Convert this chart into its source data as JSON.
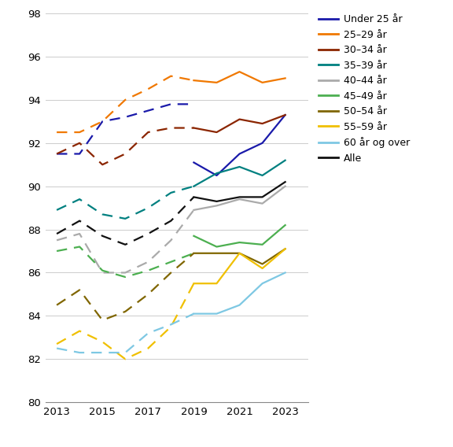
{
  "years_dashed": [
    2013,
    2014,
    2015,
    2016,
    2017,
    2018,
    2019
  ],
  "years_solid": [
    2019,
    2020,
    2021,
    2022,
    2023
  ],
  "series": [
    {
      "label": "Under 25 år",
      "color": "#1a1aaa",
      "dashed": [
        91.5,
        91.5,
        93.0,
        93.2,
        93.5,
        93.8,
        93.8
      ],
      "solid": [
        91.1,
        90.5,
        91.5,
        92.0,
        93.3
      ]
    },
    {
      "label": "25–29 år",
      "color": "#f07800",
      "dashed": [
        92.5,
        92.5,
        93.0,
        94.0,
        94.5,
        95.1,
        94.9
      ],
      "solid": [
        94.9,
        94.8,
        95.3,
        94.8,
        95.0
      ]
    },
    {
      "label": "30–34 år",
      "color": "#8b2500",
      "dashed": [
        91.5,
        92.0,
        91.0,
        91.5,
        92.5,
        92.7,
        92.7
      ],
      "solid": [
        92.7,
        92.5,
        93.1,
        92.9,
        93.3
      ]
    },
    {
      "label": "35–39 år",
      "color": "#008080",
      "dashed": [
        88.9,
        89.4,
        88.7,
        88.5,
        89.0,
        89.7,
        90.0
      ],
      "solid": [
        90.0,
        90.6,
        90.9,
        90.5,
        91.2
      ]
    },
    {
      "label": "40–44 år",
      "color": "#aaaaaa",
      "dashed": [
        87.5,
        87.8,
        86.0,
        86.0,
        86.5,
        87.5,
        88.9
      ],
      "solid": [
        88.9,
        89.1,
        89.4,
        89.2,
        90.0
      ]
    },
    {
      "label": "45–49 år",
      "color": "#4caf50",
      "dashed": [
        87.0,
        87.2,
        86.1,
        85.8,
        86.1,
        86.5,
        86.9
      ],
      "solid": [
        87.7,
        87.2,
        87.4,
        87.3,
        88.2
      ]
    },
    {
      "label": "50–54 år",
      "color": "#806600",
      "dashed": [
        84.5,
        85.2,
        83.8,
        84.2,
        85.0,
        86.0,
        86.9
      ],
      "solid": [
        86.9,
        86.9,
        86.9,
        86.4,
        87.1
      ]
    },
    {
      "label": "55–59 år",
      "color": "#f0c000",
      "dashed": [
        82.7,
        83.3,
        82.8,
        82.0,
        82.5,
        83.5,
        85.5
      ],
      "solid": [
        85.5,
        85.5,
        86.9,
        86.2,
        87.1
      ]
    },
    {
      "label": "60 år og over",
      "color": "#7ec8e3",
      "dashed": [
        82.5,
        82.3,
        82.3,
        82.3,
        83.2,
        83.6,
        84.1
      ],
      "solid": [
        84.1,
        84.1,
        84.5,
        85.5,
        86.0
      ]
    },
    {
      "label": "Alle",
      "color": "#111111",
      "dashed": [
        87.8,
        88.4,
        87.7,
        87.3,
        87.8,
        88.4,
        89.5
      ],
      "solid": [
        89.5,
        89.3,
        89.5,
        89.5,
        90.2
      ]
    }
  ],
  "ylim": [
    80,
    98
  ],
  "yticks": [
    80,
    82,
    84,
    86,
    88,
    90,
    92,
    94,
    96,
    98
  ],
  "xticks": [
    2013,
    2015,
    2017,
    2019,
    2021,
    2023
  ],
  "xlim": [
    2012.5,
    2024.0
  ],
  "background_color": "#ffffff",
  "figsize": [
    5.76,
    5.68
  ],
  "dpi": 100,
  "linewidth": 1.6,
  "dash_pattern": [
    6,
    4
  ]
}
